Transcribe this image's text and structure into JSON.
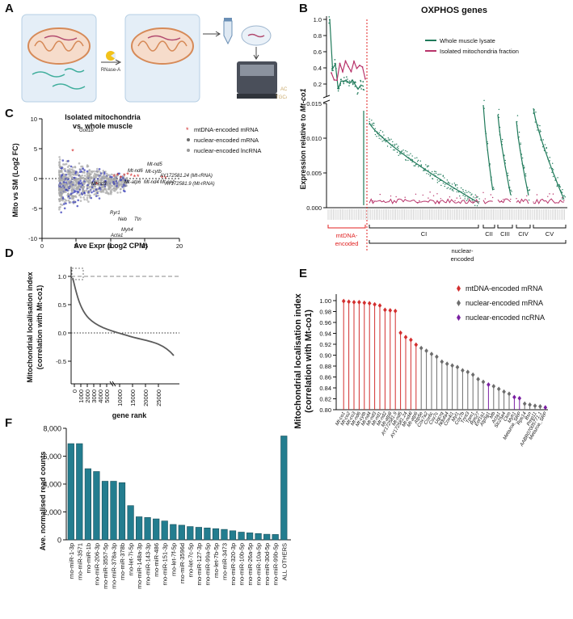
{
  "panels": {
    "A": "A",
    "B": "B",
    "C": "C",
    "D": "D",
    "E": "E",
    "F": "F"
  },
  "panelA": {
    "reagent": "RNase-A"
  },
  "panelB": {
    "title": "OXPHOS genes",
    "ylabel_prefix": "Expression relative to ",
    "ylabel_gene": "Mt-co1",
    "legend": [
      "Whole muscle lysate",
      "Isolated mitochondria fraction"
    ],
    "colors": {
      "whole": "#1f7a5a",
      "mito": "#b8336a",
      "divider": "#e02020"
    },
    "yticks_upper": [
      "1.0",
      "0.8",
      "0.6",
      "0.4",
      "0.2"
    ],
    "yticks_lower": [
      "0.015",
      "0.010",
      "0.005",
      "0.000"
    ],
    "groups": [
      {
        "label": "mtDNA-\nencoded",
        "label1": "mtDNA-",
        "label2": "encoded"
      },
      {
        "label": "CI"
      },
      {
        "label": "CII"
      },
      {
        "label": "CIII"
      },
      {
        "label": "CIV"
      },
      {
        "label": "CV"
      }
    ],
    "nuclear_label": "nuclear-\nencoded",
    "nuclear_label1": "nuclear-",
    "nuclear_label2": "encoded"
  },
  "panelC": {
    "title1": "Isolated mitochondria",
    "title2": "vs. whole muscle",
    "xlabel": "Ave Expr (Log2 CPM)",
    "ylabel": "Mito vs SM (Log2 FC)",
    "xticks": [
      "0",
      "5",
      "10",
      "15",
      "20"
    ],
    "yticks": [
      "10",
      "5",
      "0",
      "-5",
      "-10"
    ],
    "legend": [
      "mtDNA-encoded mRNA",
      "nuclear-encoded mRNA",
      "nuclear-encoded lncRNA"
    ],
    "gene_labels": [
      "Golt1b",
      "Mt-nd6",
      "Mt-nd5",
      "Mt-cytb",
      "Mt-nd3",
      "Mt-atp6",
      "Mt-nd4",
      "Mt-co1",
      "AY172581.24 (Mt-rRNA)",
      "AY172581.9 (Mt-rRNA)",
      "Ryr1",
      "Neb",
      "Ttn",
      "Myh4",
      "Acta1"
    ]
  },
  "panelD": {
    "ylabel1": "Mitochondrial localisation index",
    "ylabel2": "(correlation with Mt-co1)",
    "xlabel": "gene rank",
    "yticks": [
      "1.0",
      "0.5",
      "0.0",
      "-0.5"
    ],
    "xticks": [
      "0",
      "1000",
      "2000",
      "3000",
      "4000",
      "5000",
      "10000",
      "15000",
      "20000",
      "25000"
    ]
  },
  "panelE": {
    "ylabel1": "Mitochondrial localisation index",
    "ylabel2": "(correlation with Mt-co1)",
    "legend": [
      "mtDNA-encoded mRNA",
      "nuclear-encoded mRNA",
      "nuclear-encoded ncRNA"
    ],
    "yticks": [
      "1.00",
      "0.98",
      "0.96",
      "0.94",
      "0.92",
      "0.90",
      "0.88",
      "0.86",
      "0.84",
      "0.82",
      "0.80"
    ],
    "genes": [
      "Mt-co1",
      "Mt-co2",
      "Mt-co3",
      "Mt-nd6",
      "Mt-cytb",
      "Mt-nd4",
      "Mt-nd3",
      "Mt-nd1",
      "Mt-nd2",
      "Mt-atp8",
      "AY172581.9",
      "Mt-nd5",
      "AY172581.24",
      "Mt-nd4l",
      "Mt-atp6",
      "Atp5e",
      "Cox7a2",
      "Cox6c",
      "Cox7c",
      "Uqcrq",
      "Ndufa4",
      "Cox4i1",
      "Myl1",
      "Cox7b",
      "Tnnt3",
      "Tpm1",
      "Rps27",
      "Eef1a1",
      "Atp5g1",
      "Mb",
      "Acta1",
      "Slc25a4",
      "Ckm",
      "Myh1",
      "Metazoa_SRP",
      "Rps14",
      "Bsn",
      "Pmp11",
      "AABR07005771.1",
      "Metazoa_SRP"
    ],
    "values": [
      0.999,
      0.998,
      0.997,
      0.997,
      0.996,
      0.995,
      0.993,
      0.991,
      0.983,
      0.982,
      0.981,
      0.941,
      0.933,
      0.928,
      0.919,
      0.913,
      0.908,
      0.902,
      0.897,
      0.888,
      0.884,
      0.881,
      0.878,
      0.872,
      0.869,
      0.864,
      0.856,
      0.851,
      0.846,
      0.843,
      0.838,
      0.833,
      0.829,
      0.823,
      0.821,
      0.811,
      0.809,
      0.807,
      0.806,
      0.804
    ],
    "types": [
      "mt",
      "mt",
      "mt",
      "mt",
      "mt",
      "mt",
      "mt",
      "mt",
      "mt",
      "mt",
      "mt",
      "mt",
      "mt",
      "mt",
      "mt",
      "nu",
      "nu",
      "nu",
      "nu",
      "nu",
      "nu",
      "nu",
      "nu",
      "nu",
      "nu",
      "nu",
      "nu",
      "nu",
      "nc",
      "nu",
      "nu",
      "nu",
      "nu",
      "nc",
      "nc",
      "nu",
      "nu",
      "nu",
      "nu",
      "nc"
    ],
    "colors": {
      "mt": "#d32f2f",
      "nu": "#6d6d6d",
      "nc": "#7a1fa2"
    }
  },
  "chart_data": {
    "type": "bar",
    "title": "",
    "xlabel": "",
    "ylabel": "Ave. normalised read counts",
    "ylim": [
      0,
      8000
    ],
    "yticks": [
      "0",
      "2,000",
      "4,000",
      "6,000",
      "8,000"
    ],
    "color": "#237d8f",
    "categories": [
      "rno-miR-1-3p",
      "rno-miR-3571",
      "rno-miR-1b",
      "rno-miR-206-3p",
      "rno-miR-3557-5p",
      "rno-miR-378a-3p",
      "rno-miR-378b",
      "rno-let-7i-5p",
      "rno-miR-148a-3p",
      "rno-miR-143-3p",
      "rno-miR-486",
      "rno-miR-151-3p",
      "rno-let-7f-5p",
      "rno-miR-3596d",
      "rno-let-7c-5p",
      "rno-miR-127-3p",
      "rno-miR-99a-5p",
      "rno-let-7b-5p",
      "rno-miR-3473",
      "rno-miR-320-3p",
      "rno-miR-10b-5p",
      "rno-miR-26a-5p",
      "rno-miR-10a-5p",
      "rno-miR-30d-5p",
      "rno-miR-99b-5p",
      "ALL OTHERS"
    ],
    "values": [
      6900,
      6900,
      5100,
      4900,
      4200,
      4200,
      4100,
      2450,
      1650,
      1600,
      1500,
      1350,
      1100,
      1050,
      950,
      900,
      850,
      800,
      750,
      650,
      550,
      500,
      450,
      400,
      380,
      7450
    ]
  }
}
